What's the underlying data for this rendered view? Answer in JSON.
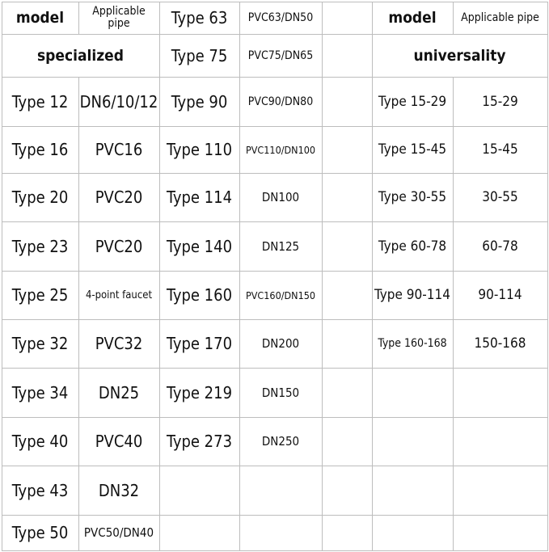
{
  "header": {
    "left": {
      "model": "model",
      "pipe": "Applicable pipe"
    },
    "right": {
      "model": "model",
      "pipe": "Applicable pipe"
    }
  },
  "left": {
    "title": "specialized",
    "rows": [
      [
        "Type 12",
        "DN6/10/12"
      ],
      [
        "Type 16",
        "PVC16"
      ],
      [
        "Type 20",
        "PVC20"
      ],
      [
        "Type 23",
        "PVC20"
      ],
      [
        "Type 25",
        "4-point faucet"
      ],
      [
        "Type 32",
        "PVC32"
      ],
      [
        "Type 34",
        "DN25"
      ],
      [
        "Type 40",
        "PVC40"
      ],
      [
        "Type 43",
        "DN32"
      ],
      [
        "Type 50",
        "PVC50/DN40"
      ]
    ]
  },
  "middle": {
    "rows": [
      [
        "Type 63",
        "PVC63/DN50"
      ],
      [
        "Type 75",
        "PVC75/DN65"
      ],
      [
        "Type 90",
        "PVC90/DN80"
      ],
      [
        "Type 110",
        "PVC110/DN100"
      ],
      [
        "Type 114",
        "DN100"
      ],
      [
        "Type 140",
        "DN125"
      ],
      [
        "Type 160",
        "PVC160/DN150"
      ],
      [
        "Type 170",
        "DN200"
      ],
      [
        "Type 219",
        "DN150"
      ],
      [
        "Type 273",
        "DN250"
      ]
    ]
  },
  "right": {
    "title": "universality",
    "rows": [
      [
        "Type 15-29",
        "15-29"
      ],
      [
        "Type 15-45",
        "15-45"
      ],
      [
        "Type 30-55",
        "30-55"
      ],
      [
        "Type 60-78",
        "60-78"
      ],
      [
        "Type 90-114",
        "90-114"
      ],
      [
        "Type 160-168",
        "150-168"
      ]
    ]
  }
}
